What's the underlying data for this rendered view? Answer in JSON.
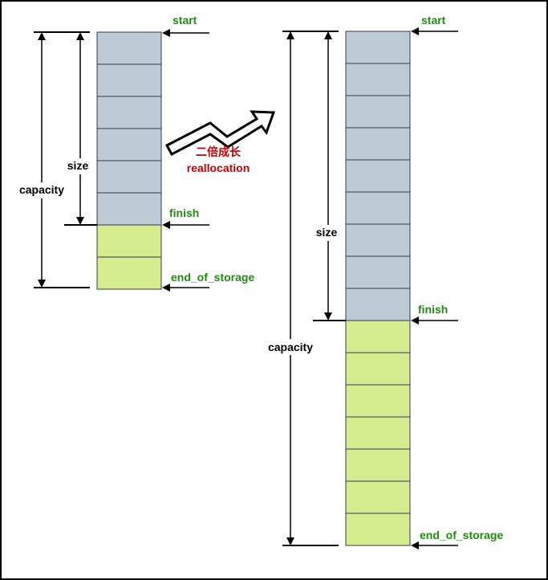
{
  "colors": {
    "used_cell": "#bccad6",
    "free_cell": "#d5eb8e",
    "cell_border": "#2f3f4f",
    "pointer_label": "#1f8c10",
    "transition_label": "#c00000"
  },
  "left_vector": {
    "pointers": {
      "start": "start",
      "finish": "finish",
      "end_of_storage": "end_of_storage"
    },
    "size_label": "size",
    "capacity_label": "capacity",
    "used_cells": 6,
    "free_cells": 2
  },
  "right_vector": {
    "pointers": {
      "start": "start",
      "finish": "finish",
      "end_of_storage": "end_of_storage"
    },
    "size_label": "size",
    "capacity_label": "capacity",
    "used_cells": 9,
    "free_cells": 7
  },
  "transition": {
    "label_cn": "二倍成长",
    "label_en": "reallocation",
    "icon": "zigzag-arrow-icon"
  }
}
